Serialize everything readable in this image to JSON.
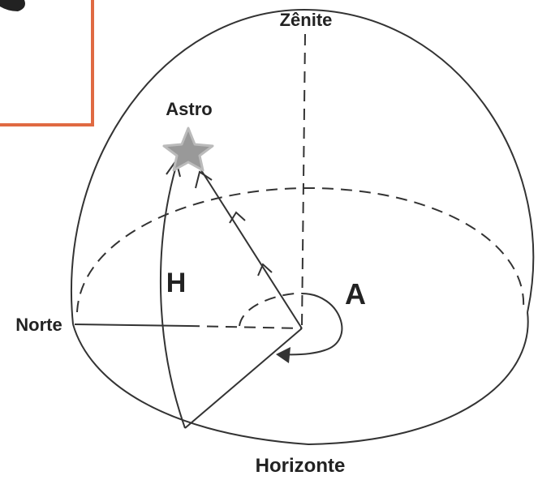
{
  "labels": {
    "zenith": "Zênite",
    "star": "Astro",
    "altitude": "H",
    "azimuth": "A",
    "north": "Norte",
    "horizon": "Horizonte"
  }
}
